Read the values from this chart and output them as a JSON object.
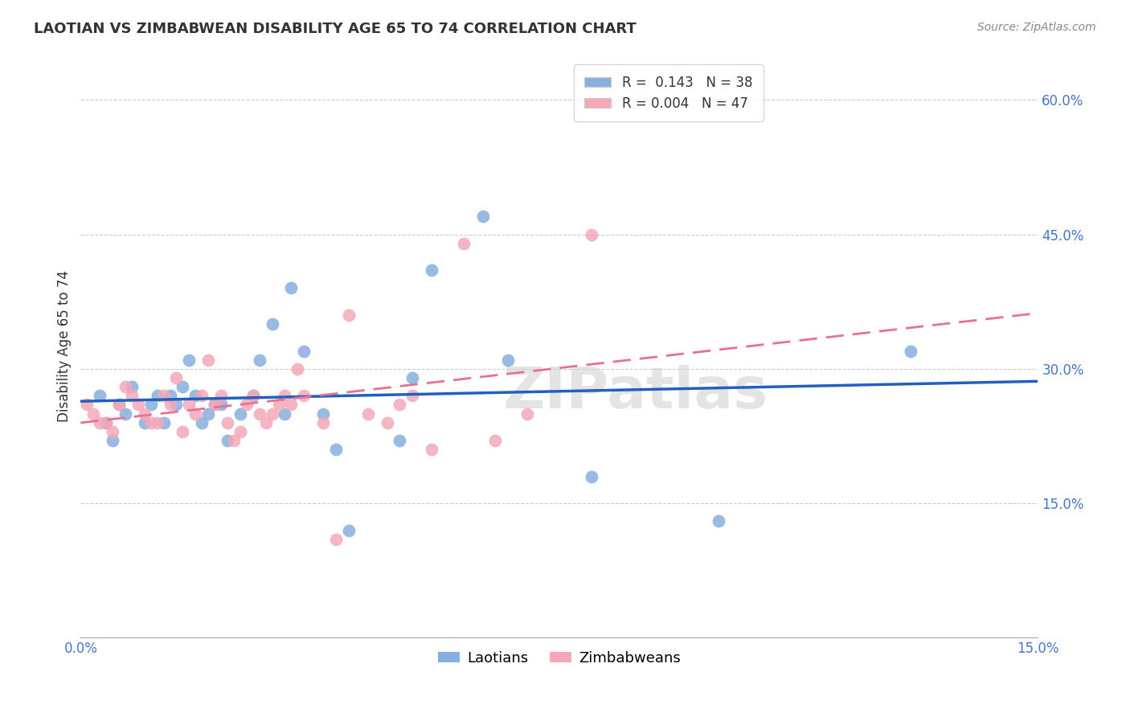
{
  "title": "LAOTIAN VS ZIMBABWEAN DISABILITY AGE 65 TO 74 CORRELATION CHART",
  "source": "Source: ZipAtlas.com",
  "ylabel": "Disability Age 65 to 74",
  "xlim": [
    0.0,
    0.15
  ],
  "ylim": [
    0.0,
    0.65
  ],
  "legend_r_laotian": "0.143",
  "legend_n_laotian": "38",
  "legend_r_zimbabwean": "0.004",
  "legend_n_zimbabwean": "47",
  "legend_label_laotian": "Laotians",
  "legend_label_zimbabwean": "Zimbabweans",
  "color_laotian": "#87AFDF",
  "color_zimbabwean": "#F4A8B8",
  "color_trend_laotian": "#2060C0",
  "color_trend_zimbabwean": "#E87090",
  "watermark": "ZIPatlas",
  "background_color": "#ffffff",
  "grid_color": "#CCCCCC",
  "laotian_x": [
    0.003,
    0.004,
    0.005,
    0.006,
    0.007,
    0.008,
    0.01,
    0.011,
    0.012,
    0.013,
    0.014,
    0.015,
    0.016,
    0.017,
    0.018,
    0.019,
    0.02,
    0.021,
    0.022,
    0.023,
    0.025,
    0.027,
    0.028,
    0.03,
    0.032,
    0.033,
    0.035,
    0.038,
    0.04,
    0.042,
    0.05,
    0.052,
    0.055,
    0.063,
    0.067,
    0.08,
    0.1,
    0.13
  ],
  "laotian_y": [
    0.27,
    0.24,
    0.22,
    0.26,
    0.25,
    0.28,
    0.24,
    0.26,
    0.27,
    0.24,
    0.27,
    0.26,
    0.28,
    0.31,
    0.27,
    0.24,
    0.25,
    0.26,
    0.26,
    0.22,
    0.25,
    0.27,
    0.31,
    0.35,
    0.25,
    0.39,
    0.32,
    0.25,
    0.21,
    0.12,
    0.22,
    0.29,
    0.41,
    0.47,
    0.31,
    0.18,
    0.13,
    0.32
  ],
  "zimbabwean_x": [
    0.001,
    0.002,
    0.003,
    0.004,
    0.005,
    0.006,
    0.007,
    0.008,
    0.009,
    0.01,
    0.011,
    0.012,
    0.013,
    0.014,
    0.015,
    0.016,
    0.017,
    0.018,
    0.019,
    0.02,
    0.021,
    0.022,
    0.023,
    0.024,
    0.025,
    0.026,
    0.027,
    0.028,
    0.029,
    0.03,
    0.031,
    0.032,
    0.033,
    0.034,
    0.035,
    0.038,
    0.04,
    0.042,
    0.045,
    0.048,
    0.05,
    0.052,
    0.055,
    0.06,
    0.065,
    0.07,
    0.08
  ],
  "zimbabwean_y": [
    0.26,
    0.25,
    0.24,
    0.24,
    0.23,
    0.26,
    0.28,
    0.27,
    0.26,
    0.25,
    0.24,
    0.24,
    0.27,
    0.26,
    0.29,
    0.23,
    0.26,
    0.25,
    0.27,
    0.31,
    0.26,
    0.27,
    0.24,
    0.22,
    0.23,
    0.26,
    0.27,
    0.25,
    0.24,
    0.25,
    0.26,
    0.27,
    0.26,
    0.3,
    0.27,
    0.24,
    0.11,
    0.36,
    0.25,
    0.24,
    0.26,
    0.27,
    0.21,
    0.44,
    0.22,
    0.25,
    0.45
  ]
}
